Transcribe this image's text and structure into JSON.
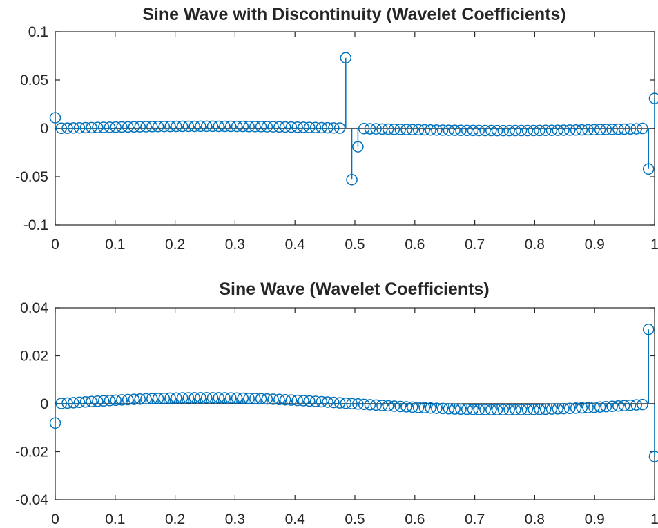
{
  "chart_data": [
    {
      "type": "stem",
      "title": "Sine Wave with Discontinuity (Wavelet Coefficients)",
      "xlabel": "",
      "ylabel": "",
      "xlim": [
        0,
        1
      ],
      "ylim": [
        -0.1,
        0.1
      ],
      "xticks": [
        0,
        0.1,
        0.2,
        0.3,
        0.4,
        0.5,
        0.6,
        0.7,
        0.8,
        0.9,
        1
      ],
      "xtick_labels": [
        "0",
        "0.1",
        "0.2",
        "0.3",
        "0.4",
        "0.5",
        "0.6",
        "0.7",
        "0.8",
        "0.9",
        "1"
      ],
      "yticks": [
        -0.1,
        -0.05,
        0,
        0.05,
        0.1
      ],
      "ytick_labels": [
        "-0.1",
        "-0.05",
        "0",
        "0.05",
        "0.1"
      ],
      "grid": false,
      "color": "#0072BD",
      "n_points": 100,
      "smooth": {
        "kind": "sine",
        "amplitude": 0.0022,
        "cycles": 1,
        "flat_before": 0.97
      },
      "spikes": [
        {
          "x": 0.0,
          "y": 0.011
        },
        {
          "x": 0.4848,
          "y": 0.073
        },
        {
          "x": 0.4949,
          "y": -0.053
        },
        {
          "x": 0.5051,
          "y": -0.019
        },
        {
          "x": 0.9899,
          "y": -0.042
        },
        {
          "x": 1.0,
          "y": 0.031
        }
      ]
    },
    {
      "type": "stem",
      "title": "Sine Wave (Wavelet Coefficients)",
      "xlabel": "",
      "ylabel": "",
      "xlim": [
        0,
        1
      ],
      "ylim": [
        -0.04,
        0.04
      ],
      "xticks": [
        0,
        0.1,
        0.2,
        0.3,
        0.4,
        0.5,
        0.6,
        0.7,
        0.8,
        0.9,
        1
      ],
      "xtick_labels": [
        "0",
        "0.1",
        "0.2",
        "0.3",
        "0.4",
        "0.5",
        "0.6",
        "0.7",
        "0.8",
        "0.9",
        "1"
      ],
      "yticks": [
        -0.04,
        -0.02,
        0,
        0.02,
        0.04
      ],
      "ytick_labels": [
        "-0.04",
        "-0.02",
        "0",
        "0.02",
        "0.04"
      ],
      "grid": false,
      "color": "#0072BD",
      "n_points": 100,
      "smooth": {
        "kind": "sine",
        "amplitude": 0.0025,
        "cycles": 1,
        "flat_before": 1.0
      },
      "spikes": [
        {
          "x": 0.0,
          "y": -0.008
        },
        {
          "x": 0.9899,
          "y": 0.031
        },
        {
          "x": 1.0,
          "y": -0.022
        }
      ]
    }
  ]
}
